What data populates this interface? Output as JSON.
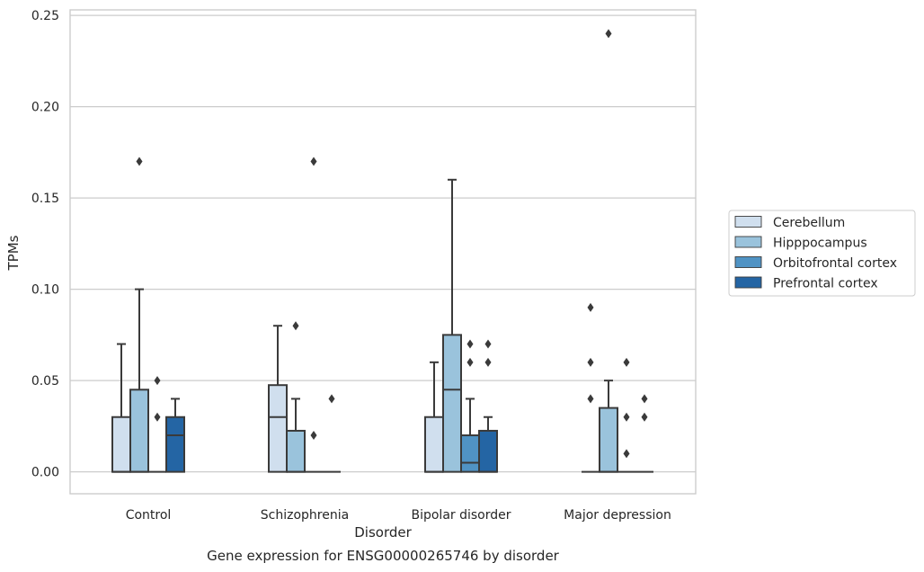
{
  "chart_data": {
    "type": "box",
    "title": "",
    "caption": "Gene expression for ENSG00000265746 by disorder",
    "xlabel": "Disorder",
    "ylabel": "TPMs",
    "ylim": [
      -0.012,
      0.253
    ],
    "yticks": [
      0.0,
      0.05,
      0.1,
      0.15,
      0.2,
      0.25
    ],
    "ytick_labels": [
      "0.00",
      "0.05",
      "0.10",
      "0.15",
      "0.20",
      "0.25"
    ],
    "grid": "horizontal",
    "legend_position": "right",
    "categories": [
      "Control",
      "Schizophrenia",
      "Bipolar disorder",
      "Major depression"
    ],
    "series": [
      {
        "name": "Cerebellum",
        "color": "#d0dfee",
        "boxes": [
          {
            "q1": 0.0,
            "median": 0.0,
            "q3": 0.03,
            "whislo": 0.0,
            "whishi": 0.07,
            "fliers": []
          },
          {
            "q1": 0.0,
            "median": 0.03,
            "q3": 0.0475,
            "whislo": 0.0,
            "whishi": 0.08,
            "fliers": []
          },
          {
            "q1": 0.0,
            "median": 0.0,
            "q3": 0.03,
            "whislo": 0.0,
            "whishi": 0.06,
            "fliers": []
          },
          {
            "q1": 0.0,
            "median": 0.0,
            "q3": 0.0,
            "whislo": 0.0,
            "whishi": 0.0,
            "fliers": [
              0.04,
              0.06,
              0.09
            ]
          }
        ]
      },
      {
        "name": "Hipppocampus",
        "color": "#9ac3dc",
        "boxes": [
          {
            "q1": 0.0,
            "median": 0.0,
            "q3": 0.045,
            "whislo": 0.0,
            "whishi": 0.1,
            "fliers": [
              0.17
            ]
          },
          {
            "q1": 0.0,
            "median": 0.0,
            "q3": 0.0225,
            "whislo": 0.0,
            "whishi": 0.04,
            "fliers": [
              0.08
            ]
          },
          {
            "q1": 0.0,
            "median": 0.045,
            "q3": 0.075,
            "whislo": 0.0,
            "whishi": 0.16,
            "fliers": []
          },
          {
            "q1": 0.0,
            "median": 0.0,
            "q3": 0.035,
            "whislo": 0.0,
            "whishi": 0.05,
            "fliers": [
              0.24
            ]
          }
        ]
      },
      {
        "name": "Orbitofrontal cortex",
        "color": "#5093c4",
        "boxes": [
          {
            "q1": 0.0,
            "median": 0.0,
            "q3": 0.0,
            "whislo": 0.0,
            "whishi": 0.0,
            "fliers": [
              0.03,
              0.05
            ]
          },
          {
            "q1": 0.0,
            "median": 0.0,
            "q3": 0.0,
            "whislo": 0.0,
            "whishi": 0.0,
            "fliers": [
              0.02,
              0.17
            ]
          },
          {
            "q1": 0.0,
            "median": 0.005,
            "q3": 0.02,
            "whislo": 0.0,
            "whishi": 0.04,
            "fliers": [
              0.06,
              0.07
            ]
          },
          {
            "q1": 0.0,
            "median": 0.0,
            "q3": 0.0,
            "whislo": 0.0,
            "whishi": 0.0,
            "fliers": [
              0.01,
              0.03,
              0.06
            ]
          }
        ]
      },
      {
        "name": "Prefrontal cortex",
        "color": "#2465a4",
        "boxes": [
          {
            "q1": 0.0,
            "median": 0.02,
            "q3": 0.03,
            "whislo": 0.0,
            "whishi": 0.04,
            "fliers": []
          },
          {
            "q1": 0.0,
            "median": 0.0,
            "q3": 0.0,
            "whislo": 0.0,
            "whishi": 0.0,
            "fliers": [
              0.04
            ]
          },
          {
            "q1": 0.0,
            "median": 0.0,
            "q3": 0.0225,
            "whislo": 0.0,
            "whishi": 0.03,
            "fliers": [
              0.06,
              0.07
            ]
          },
          {
            "q1": 0.0,
            "median": 0.0,
            "q3": 0.0,
            "whislo": 0.0,
            "whishi": 0.0,
            "fliers": [
              0.03,
              0.04
            ]
          }
        ]
      }
    ]
  }
}
